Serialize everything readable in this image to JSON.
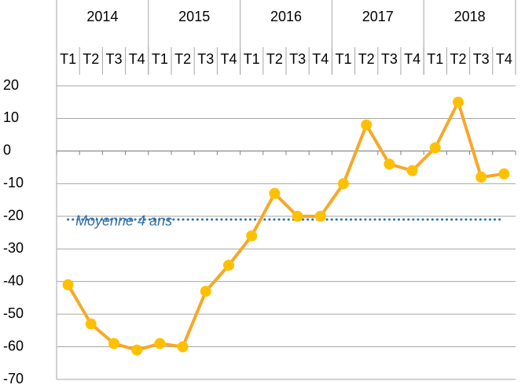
{
  "chart_data": {
    "type": "line",
    "groups": [
      {
        "label": "2014",
        "span": 4
      },
      {
        "label": "2015",
        "span": 4
      },
      {
        "label": "2016",
        "span": 4
      },
      {
        "label": "2017",
        "span": 4
      },
      {
        "label": "2018",
        "span": 4
      }
    ],
    "categories": [
      "T1",
      "T2",
      "T3",
      "T4",
      "T1",
      "T2",
      "T3",
      "T4",
      "T1",
      "T2",
      "T3",
      "T4",
      "T1",
      "T2",
      "T3",
      "T4",
      "T1",
      "T2",
      "T3",
      "T4"
    ],
    "series": [
      {
        "color": "#f6a828",
        "marker_color": "#ffc000",
        "values": [
          -41,
          -53,
          -59,
          -61,
          -59,
          -60,
          -43,
          -35,
          -26,
          -13,
          -20,
          -20,
          -10,
          8,
          -4,
          -6,
          1,
          15,
          -8,
          -7
        ]
      }
    ],
    "average": {
      "label": "Moyenne 4 ans",
      "value": -21,
      "color": "#2e6fa8"
    },
    "ylim": [
      -70,
      20
    ],
    "yticks": [
      -70,
      -60,
      -50,
      -40,
      -30,
      -20,
      -10,
      0,
      10,
      20
    ],
    "grid": true
  }
}
